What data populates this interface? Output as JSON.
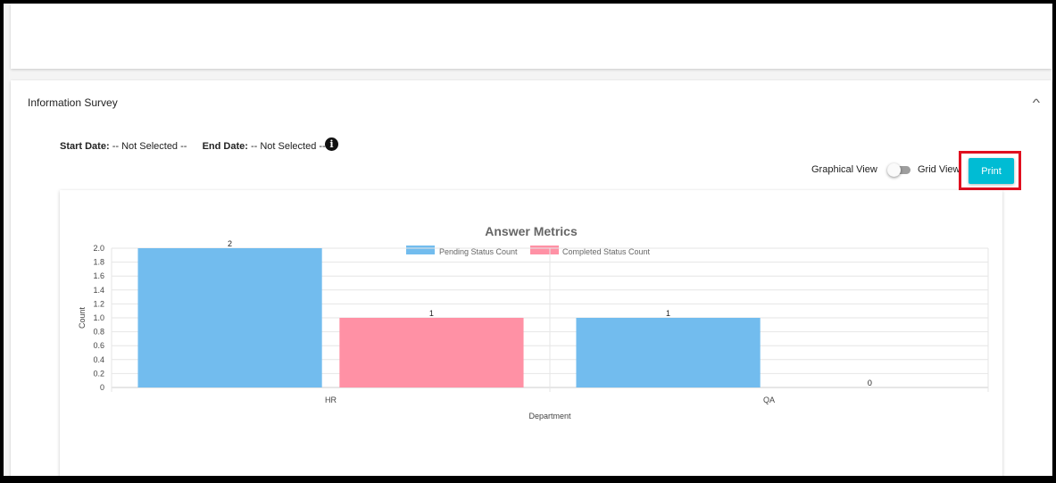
{
  "section": {
    "title": "Information Survey"
  },
  "filters": {
    "start_label": "Start Date:",
    "start_value": "-- Not Selected --",
    "end_label": "End Date:",
    "end_value": "-- Not Selected --"
  },
  "view_toggle": {
    "left_label": "Graphical View",
    "right_label": "Grid View",
    "state": "graphical"
  },
  "print_button": {
    "label": "Print",
    "color": "#00bcd4",
    "highlight_color": "#e01020"
  },
  "chart_data": {
    "type": "bar",
    "title": "Answer Metrics",
    "xlabel": "Department",
    "ylabel": "Count",
    "categories": [
      "HR",
      "QA"
    ],
    "ylim": [
      0,
      2
    ],
    "yticks": [
      "0",
      "0.2",
      "0.4",
      "0.6",
      "0.8",
      "1.0",
      "1.2",
      "1.4",
      "1.6",
      "1.8",
      "2.0"
    ],
    "grid": true,
    "legend_position": "top-center",
    "series": [
      {
        "name": "Pending Status Count",
        "values": [
          2,
          1
        ],
        "color": "#72bcee"
      },
      {
        "name": "Completed Status Count",
        "values": [
          1,
          0
        ],
        "color": "#ff91a5"
      }
    ]
  }
}
